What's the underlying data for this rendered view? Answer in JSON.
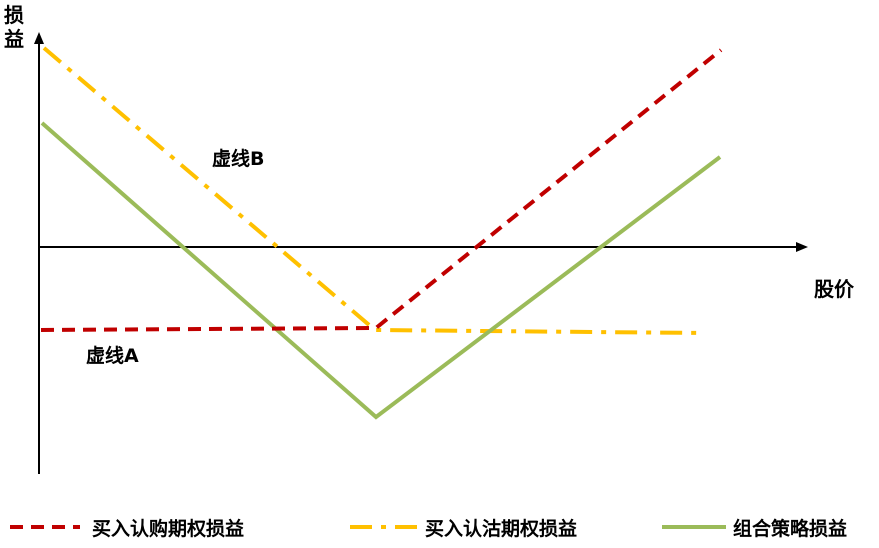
{
  "axis": {
    "y_label": "损益",
    "x_label": "股价"
  },
  "annotations": {
    "line_a": "虚线A",
    "line_b": "虚线B"
  },
  "legend": [
    {
      "label": "买入认购期权损益",
      "style": "dashed",
      "color": "#C00000"
    },
    {
      "label": "买入认沽期权损益",
      "style": "dash-dot",
      "color": "#FFC000"
    },
    {
      "label": "组合策略损益",
      "style": "solid",
      "color": "#9BBB59"
    }
  ],
  "colors": {
    "call": "#C00000",
    "put": "#FFC000",
    "combo": "#9BBB59",
    "axis": "#000000"
  }
}
